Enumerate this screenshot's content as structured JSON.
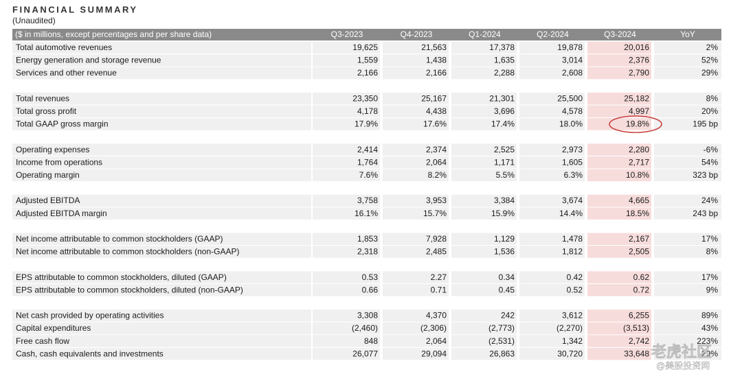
{
  "title": "FINANCIAL SUMMARY",
  "subtitle": "(Unaudited)",
  "table": {
    "header": [
      "($ in millions, except percentages and per share data)",
      "Q3-2023",
      "Q4-2023",
      "Q1-2024",
      "Q2-2024",
      "Q3-2024",
      "YoY"
    ],
    "groups": [
      {
        "rows": [
          [
            "Total automotive revenues",
            "19,625",
            "21,563",
            "17,378",
            "19,878",
            "20,016",
            "2%"
          ],
          [
            "Energy generation and storage revenue",
            "1,559",
            "1,438",
            "1,635",
            "3,014",
            "2,376",
            "52%"
          ],
          [
            "Services and other revenue",
            "2,166",
            "2,166",
            "2,288",
            "2,608",
            "2,790",
            "29%"
          ]
        ]
      },
      {
        "rows": [
          [
            "Total revenues",
            "23,350",
            "25,167",
            "21,301",
            "25,500",
            "25,182",
            "8%"
          ],
          [
            "Total gross profit",
            "4,178",
            "4,438",
            "3,696",
            "4,578",
            "4,997",
            "20%"
          ],
          [
            "Total GAAP gross margin",
            "17.9%",
            "17.6%",
            "17.4%",
            "18.0%",
            "19.8%",
            "195 bp"
          ]
        ]
      },
      {
        "rows": [
          [
            "Operating expenses",
            "2,414",
            "2,374",
            "2,525",
            "2,973",
            "2,280",
            "-6%"
          ],
          [
            "Income from operations",
            "1,764",
            "2,064",
            "1,171",
            "1,605",
            "2,717",
            "54%"
          ],
          [
            "Operating margin",
            "7.6%",
            "8.2%",
            "5.5%",
            "6.3%",
            "10.8%",
            "323 bp"
          ]
        ]
      },
      {
        "rows": [
          [
            "Adjusted EBITDA",
            "3,758",
            "3,953",
            "3,384",
            "3,674",
            "4,665",
            "24%"
          ],
          [
            "Adjusted EBITDA margin",
            "16.1%",
            "15.7%",
            "15.9%",
            "14.4%",
            "18.5%",
            "243 bp"
          ]
        ]
      },
      {
        "rows": [
          [
            "Net income attributable to common stockholders (GAAP)",
            "1,853",
            "7,928",
            "1,129",
            "1,478",
            "2,167",
            "17%"
          ],
          [
            "Net income attributable to common stockholders (non-GAAP)",
            "2,318",
            "2,485",
            "1,536",
            "1,812",
            "2,505",
            "8%"
          ]
        ]
      },
      {
        "rows": [
          [
            "EPS attributable to common stockholders, diluted (GAAP)",
            "0.53",
            "2.27",
            "0.34",
            "0.42",
            "0.62",
            "17%"
          ],
          [
            "EPS attributable to common stockholders, diluted (non-GAAP)",
            "0.66",
            "0.71",
            "0.45",
            "0.52",
            "0.72",
            "9%"
          ]
        ]
      },
      {
        "rows": [
          [
            "Net cash provided by operating activities",
            "3,308",
            "4,370",
            "242",
            "3,612",
            "6,255",
            "89%"
          ],
          [
            "Capital expenditures",
            "(2,460)",
            "(2,306)",
            "(2,773)",
            "(2,270)",
            "(3,513)",
            "43%"
          ],
          [
            "Free cash flow",
            "848",
            "2,064",
            "(2,531)",
            "1,342",
            "2,742",
            "223%"
          ],
          [
            "Cash, cash equivalents and investments",
            "26,077",
            "29,094",
            "26,863",
            "30,720",
            "33,648",
            "29%"
          ]
        ]
      }
    ]
  },
  "watermark": {
    "main": "老虎社区",
    "sub": "@美股投资网"
  }
}
